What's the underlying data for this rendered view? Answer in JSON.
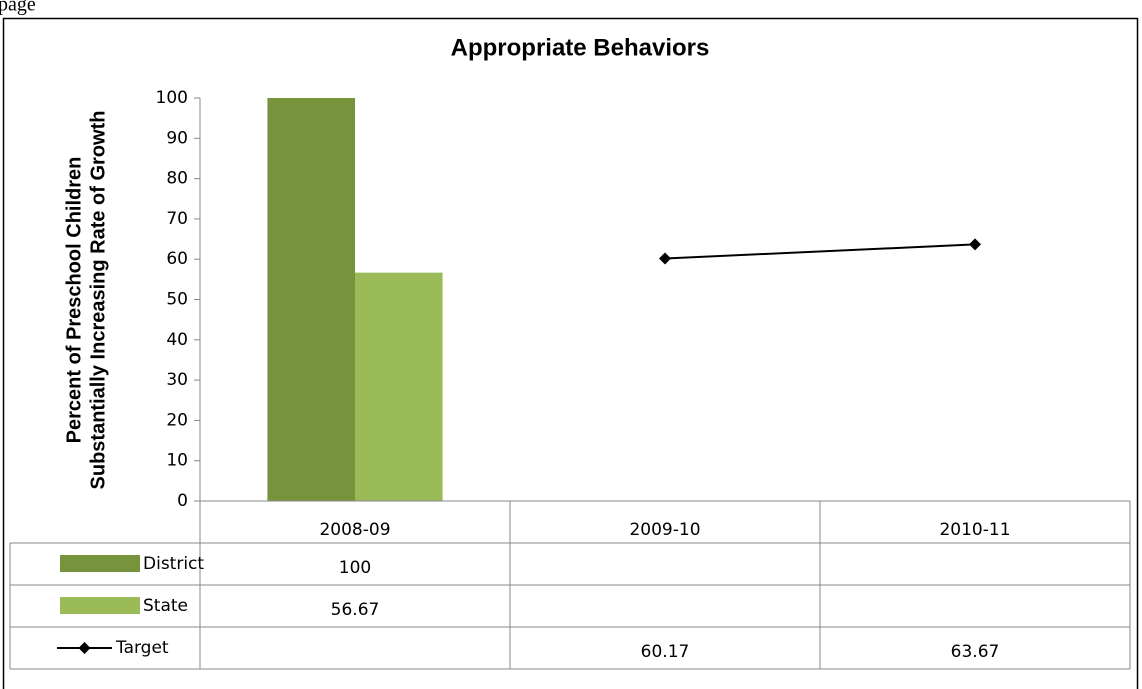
{
  "header_text": "page",
  "chart_data": {
    "type": "bar",
    "title": "Appropriate Behaviors",
    "ylabel": [
      "Percent of Preschool Children",
      "Substantially Increasing Rate of Growth"
    ],
    "categories": [
      "2008-09",
      "2009-10",
      "2010-11"
    ],
    "series": [
      {
        "name": "District",
        "color": "#77933c",
        "type": "bar",
        "values": [
          100,
          null,
          null
        ]
      },
      {
        "name": "State",
        "color": "#9bbb59",
        "type": "bar",
        "values": [
          56.67,
          null,
          null
        ]
      },
      {
        "name": "Target",
        "color": "#000000",
        "type": "line",
        "values": [
          null,
          60.17,
          63.67
        ]
      }
    ],
    "ylim": [
      0,
      100
    ],
    "yticks": [
      0,
      10,
      20,
      30,
      40,
      50,
      60,
      70,
      80,
      90,
      100
    ],
    "grid": false,
    "data_table": true
  }
}
